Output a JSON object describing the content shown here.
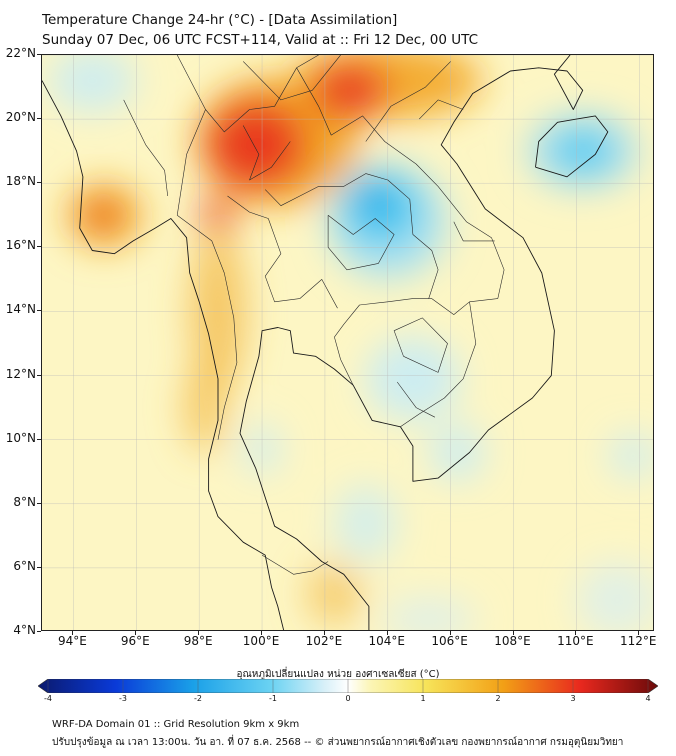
{
  "header": {
    "title": "Temperature Change 24-hr (°C) - [Data Assimilation]",
    "subtitle": "Sunday 07 Dec, 06 UTC FCST+114, Valid at :: Fri 12 Dec, 00 UTC"
  },
  "map": {
    "lat_range": [
      4,
      22
    ],
    "lon_range": [
      93,
      112.5
    ],
    "lat_labels": [
      {
        "value": 22,
        "text": "22°N"
      },
      {
        "value": 20,
        "text": "20°N"
      },
      {
        "value": 18,
        "text": "18°N"
      },
      {
        "value": 16,
        "text": "16°N"
      },
      {
        "value": 14,
        "text": "14°N"
      },
      {
        "value": 12,
        "text": "12°N"
      },
      {
        "value": 10,
        "text": "10°N"
      },
      {
        "value": 8,
        "text": "8°N"
      },
      {
        "value": 6,
        "text": "6°N"
      },
      {
        "value": 4,
        "text": "4°N"
      }
    ],
    "lon_labels": [
      {
        "value": 94,
        "text": "94°E"
      },
      {
        "value": 96,
        "text": "96°E"
      },
      {
        "value": 98,
        "text": "98°E"
      },
      {
        "value": 100,
        "text": "100°E"
      },
      {
        "value": 102,
        "text": "102°E"
      },
      {
        "value": 104,
        "text": "104°E"
      },
      {
        "value": 106,
        "text": "106°E"
      },
      {
        "value": 108,
        "text": "108°E"
      },
      {
        "value": 110,
        "text": "110°E"
      },
      {
        "value": 112,
        "text": "112°E"
      }
    ],
    "background_color": "#fdf6c4",
    "anomaly_regions": [
      {
        "lon": 100.5,
        "lat": 19.3,
        "rlon": 2.6,
        "rlat": 2.0,
        "color": "#f2a016",
        "opacity": 0.9
      },
      {
        "lon": 104.0,
        "lat": 21.2,
        "rlon": 3.0,
        "rlat": 1.2,
        "color": "#f2a016",
        "opacity": 0.85
      },
      {
        "lon": 99.8,
        "lat": 19.2,
        "rlon": 1.6,
        "rlat": 1.4,
        "color": "#e8281e",
        "opacity": 0.85
      },
      {
        "lon": 102.8,
        "lat": 20.9,
        "rlon": 1.2,
        "rlat": 0.9,
        "color": "#e8281e",
        "opacity": 0.8
      },
      {
        "lon": 98.6,
        "lat": 17.0,
        "rlon": 0.6,
        "rlat": 0.6,
        "color": "#e8281e",
        "opacity": 0.75
      },
      {
        "lon": 95.0,
        "lat": 17.0,
        "rlon": 1.2,
        "rlat": 1.0,
        "color": "#f2a016",
        "opacity": 0.85
      },
      {
        "lon": 94.9,
        "lat": 17.0,
        "rlon": 0.5,
        "rlat": 0.45,
        "color": "#e8281e",
        "opacity": 0.85
      },
      {
        "lon": 98.6,
        "lat": 14.0,
        "rlon": 0.9,
        "rlat": 2.5,
        "color": "#f2b43a",
        "opacity": 0.7
      },
      {
        "lon": 98.2,
        "lat": 11.0,
        "rlon": 0.7,
        "rlat": 1.4,
        "color": "#f2b43a",
        "opacity": 0.65
      },
      {
        "lon": 102.3,
        "lat": 5.2,
        "rlon": 0.9,
        "rlat": 1.0,
        "color": "#f2b43a",
        "opacity": 0.6
      },
      {
        "lon": 104.0,
        "lat": 16.8,
        "rlon": 1.9,
        "rlat": 1.8,
        "color": "#a8e0f2",
        "opacity": 0.95
      },
      {
        "lon": 103.8,
        "lat": 17.2,
        "rlon": 1.2,
        "rlat": 1.1,
        "color": "#3cc6f0",
        "opacity": 0.9
      },
      {
        "lon": 103.6,
        "lat": 17.5,
        "rlon": 0.5,
        "rlat": 0.45,
        "color": "#1496e6",
        "opacity": 0.9
      },
      {
        "lon": 110.2,
        "lat": 19.0,
        "rlon": 1.8,
        "rlat": 1.2,
        "color": "#a8e0f2",
        "opacity": 0.9
      },
      {
        "lon": 110.2,
        "lat": 19.0,
        "rlon": 1.0,
        "rlat": 0.7,
        "color": "#3cc6f0",
        "opacity": 0.8
      },
      {
        "lon": 94.6,
        "lat": 21.2,
        "rlon": 1.4,
        "rlat": 1.0,
        "color": "#c8ecf6",
        "opacity": 0.85
      },
      {
        "lon": 104.8,
        "lat": 11.9,
        "rlon": 1.5,
        "rlat": 1.3,
        "color": "#c8ecf6",
        "opacity": 0.9
      },
      {
        "lon": 106.2,
        "lat": 9.6,
        "rlon": 0.9,
        "rlat": 0.9,
        "color": "#c8ecf6",
        "opacity": 0.85
      },
      {
        "lon": 103.3,
        "lat": 7.4,
        "rlon": 1.0,
        "rlat": 1.2,
        "color": "#c8ecf6",
        "opacity": 0.75
      },
      {
        "lon": 100.0,
        "lat": 9.7,
        "rlon": 0.6,
        "rlat": 0.8,
        "color": "#c8ecf6",
        "opacity": 0.8
      },
      {
        "lon": 111.8,
        "lat": 9.5,
        "rlon": 0.8,
        "rlat": 0.7,
        "color": "#c8ecf6",
        "opacity": 0.8
      },
      {
        "lon": 105.3,
        "lat": 4.4,
        "rlon": 1.5,
        "rlat": 0.7,
        "color": "#d6eef4",
        "opacity": 0.7
      },
      {
        "lon": 111.3,
        "lat": 5.0,
        "rlon": 1.3,
        "rlat": 1.2,
        "color": "#d6eef4",
        "opacity": 0.7
      }
    ],
    "coastlines": [
      [
        [
          93.0,
          21.2
        ],
        [
          93.6,
          20.1
        ],
        [
          94.1,
          19.0
        ],
        [
          94.3,
          18.2
        ],
        [
          94.2,
          16.6
        ],
        [
          94.6,
          15.9
        ],
        [
          95.3,
          15.8
        ],
        [
          95.9,
          16.2
        ],
        [
          96.6,
          16.6
        ],
        [
          97.1,
          16.9
        ],
        [
          97.6,
          16.3
        ],
        [
          97.7,
          15.2
        ],
        [
          98.0,
          14.3
        ],
        [
          98.3,
          13.3
        ],
        [
          98.6,
          11.9
        ],
        [
          98.6,
          10.6
        ],
        [
          98.3,
          9.4
        ],
        [
          98.3,
          8.4
        ],
        [
          98.6,
          7.6
        ],
        [
          99.4,
          6.8
        ],
        [
          100.1,
          6.4
        ],
        [
          100.3,
          5.4
        ],
        [
          100.5,
          4.8
        ],
        [
          100.7,
          4.0
        ]
      ],
      [
        [
          103.4,
          4.0
        ],
        [
          103.4,
          4.8
        ],
        [
          102.6,
          5.8
        ],
        [
          101.9,
          6.2
        ],
        [
          101.1,
          6.9
        ],
        [
          100.4,
          7.3
        ],
        [
          100.1,
          8.2
        ],
        [
          99.8,
          9.1
        ],
        [
          99.3,
          10.2
        ],
        [
          99.5,
          11.2
        ],
        [
          99.9,
          12.6
        ],
        [
          100.0,
          13.4
        ],
        [
          100.5,
          13.5
        ],
        [
          100.9,
          13.4
        ],
        [
          101.0,
          12.7
        ],
        [
          101.7,
          12.6
        ],
        [
          102.3,
          12.2
        ],
        [
          102.9,
          11.7
        ],
        [
          103.5,
          10.6
        ],
        [
          104.4,
          10.4
        ],
        [
          104.8,
          9.8
        ],
        [
          104.8,
          8.7
        ],
        [
          105.6,
          8.8
        ],
        [
          106.6,
          9.6
        ],
        [
          107.2,
          10.3
        ],
        [
          108.6,
          11.3
        ],
        [
          109.2,
          12.0
        ],
        [
          109.3,
          13.4
        ],
        [
          108.9,
          15.2
        ],
        [
          108.3,
          16.3
        ],
        [
          107.1,
          17.2
        ],
        [
          106.2,
          18.6
        ],
        [
          105.7,
          19.2
        ],
        [
          106.1,
          19.9
        ],
        [
          106.7,
          20.8
        ],
        [
          107.9,
          21.5
        ],
        [
          108.8,
          21.6
        ],
        [
          109.7,
          21.5
        ],
        [
          110.2,
          20.9
        ],
        [
          109.9,
          20.3
        ],
        [
          109.3,
          21.4
        ],
        [
          109.8,
          22.0
        ]
      ],
      [
        [
          108.7,
          18.5
        ],
        [
          109.7,
          18.2
        ],
        [
          110.6,
          18.9
        ],
        [
          111.0,
          19.6
        ],
        [
          110.6,
          20.1
        ],
        [
          110.0,
          20.0
        ],
        [
          109.4,
          19.9
        ],
        [
          108.8,
          19.3
        ],
        [
          108.7,
          18.5
        ]
      ]
    ],
    "borders": [
      [
        [
          97.3,
          22.0
        ],
        [
          98.2,
          20.3
        ],
        [
          98.8,
          19.6
        ],
        [
          99.6,
          20.3
        ],
        [
          100.4,
          20.4
        ],
        [
          101.1,
          21.6
        ],
        [
          101.8,
          22.0
        ]
      ],
      [
        [
          99.4,
          21.8
        ],
        [
          100.6,
          20.6
        ],
        [
          101.6,
          20.9
        ],
        [
          102.5,
          22.0
        ]
      ],
      [
        [
          101.1,
          21.6
        ],
        [
          101.8,
          20.4
        ],
        [
          102.2,
          19.5
        ],
        [
          103.2,
          20.1
        ],
        [
          103.9,
          19.3
        ],
        [
          104.9,
          18.6
        ],
        [
          105.6,
          17.9
        ],
        [
          106.5,
          16.8
        ],
        [
          107.3,
          16.3
        ],
        [
          107.7,
          15.3
        ],
        [
          107.5,
          14.4
        ],
        [
          106.6,
          14.3
        ],
        [
          106.1,
          13.9
        ],
        [
          105.4,
          14.4
        ],
        [
          104.8,
          14.4
        ],
        [
          104.0,
          14.3
        ],
        [
          103.1,
          14.2
        ],
        [
          102.6,
          13.6
        ],
        [
          102.3,
          13.2
        ],
        [
          102.5,
          12.5
        ],
        [
          102.9,
          11.7
        ]
      ],
      [
        [
          100.1,
          17.8
        ],
        [
          100.6,
          17.3
        ],
        [
          101.2,
          17.6
        ],
        [
          101.8,
          17.9
        ],
        [
          102.6,
          17.9
        ],
        [
          103.3,
          18.3
        ],
        [
          104.0,
          18.1
        ],
        [
          104.7,
          17.5
        ],
        [
          104.8,
          16.4
        ],
        [
          105.4,
          15.9
        ],
        [
          105.6,
          15.3
        ],
        [
          105.3,
          14.4
        ]
      ],
      [
        [
          106.6,
          14.3
        ],
        [
          106.8,
          13.0
        ],
        [
          106.4,
          11.9
        ],
        [
          105.8,
          11.3
        ],
        [
          105.0,
          10.8
        ],
        [
          104.4,
          10.4
        ]
      ],
      [
        [
          97.3,
          17.0
        ],
        [
          98.4,
          16.2
        ],
        [
          98.8,
          15.2
        ],
        [
          99.1,
          13.8
        ],
        [
          99.2,
          12.4
        ],
        [
          98.8,
          11.0
        ],
        [
          98.6,
          10.0
        ]
      ],
      [
        [
          100.0,
          6.4
        ],
        [
          101.0,
          5.8
        ],
        [
          101.6,
          5.9
        ],
        [
          102.1,
          6.2
        ]
      ],
      [
        [
          98.9,
          17.6
        ],
        [
          99.6,
          17.1
        ],
        [
          100.2,
          16.9
        ],
        [
          100.6,
          15.8
        ],
        [
          100.1,
          15.1
        ],
        [
          100.4,
          14.3
        ],
        [
          101.2,
          14.4
        ],
        [
          101.9,
          15.0
        ],
        [
          102.4,
          14.1
        ]
      ],
      [
        [
          99.4,
          19.8
        ],
        [
          99.9,
          18.9
        ],
        [
          99.6,
          18.1
        ],
        [
          100.3,
          18.5
        ],
        [
          100.9,
          19.3
        ]
      ],
      [
        [
          102.1,
          17.0
        ],
        [
          102.9,
          16.4
        ],
        [
          103.6,
          16.9
        ],
        [
          104.2,
          16.4
        ],
        [
          103.7,
          15.5
        ],
        [
          102.7,
          15.3
        ],
        [
          102.1,
          16.0
        ],
        [
          102.1,
          17.0
        ]
      ],
      [
        [
          104.5,
          12.6
        ],
        [
          104.2,
          13.4
        ],
        [
          105.1,
          13.8
        ],
        [
          105.9,
          13.0
        ],
        [
          105.6,
          12.1
        ],
        [
          104.5,
          12.6
        ]
      ],
      [
        [
          95.6,
          20.6
        ],
        [
          96.3,
          19.2
        ],
        [
          96.9,
          18.4
        ],
        [
          97.0,
          17.6
        ]
      ],
      [
        [
          98.2,
          20.3
        ],
        [
          97.6,
          18.9
        ],
        [
          97.3,
          17.0
        ]
      ],
      [
        [
          103.3,
          19.3
        ],
        [
          104.1,
          20.4
        ],
        [
          105.2,
          21.0
        ],
        [
          106.0,
          21.8
        ]
      ],
      [
        [
          106.4,
          20.3
        ],
        [
          105.6,
          20.6
        ],
        [
          105.0,
          20.0
        ]
      ],
      [
        [
          107.4,
          16.2
        ],
        [
          106.4,
          16.2
        ],
        [
          106.1,
          16.8
        ]
      ],
      [
        [
          104.3,
          11.8
        ],
        [
          104.9,
          11.0
        ],
        [
          105.5,
          10.7
        ]
      ]
    ]
  },
  "colorbar": {
    "title": "อุณหภูมิเปลี่ยนแปลง หน่วย องศาเซลเซียส (°C)",
    "vmin": -4,
    "vmax": 4,
    "tick_labels": [
      "-4",
      "-3",
      "-2",
      "-1",
      "0",
      "1",
      "2",
      "3",
      "4"
    ],
    "stops": [
      {
        "value": -4,
        "color": "#0b1a6e"
      },
      {
        "value": -3,
        "color": "#0a3ad8"
      },
      {
        "value": -2,
        "color": "#1aa0e8"
      },
      {
        "value": -1,
        "color": "#6ad2f2"
      },
      {
        "value": -0.3,
        "color": "#d8f0f8"
      },
      {
        "value": 0,
        "color": "#ffffff"
      },
      {
        "value": 0.3,
        "color": "#fbf5b4"
      },
      {
        "value": 1,
        "color": "#f7e45a"
      },
      {
        "value": 2,
        "color": "#f2a016"
      },
      {
        "value": 3,
        "color": "#e8281e"
      },
      {
        "value": 4,
        "color": "#6a0a0a"
      }
    ]
  },
  "footer": {
    "line1": "WRF-DA Domain 01 :: Grid Resolution 9km x 9km",
    "line2": "ปรับปรุงข้อมูล ณ เวลา 13:00น. วัน อา. ที่ 07 ธ.ค. 2568 -- © ส่วนพยากรณ์อากาศเชิงตัวเลข กองพยากรณ์อากาศ กรมอุตุนิยมวิทยา"
  }
}
